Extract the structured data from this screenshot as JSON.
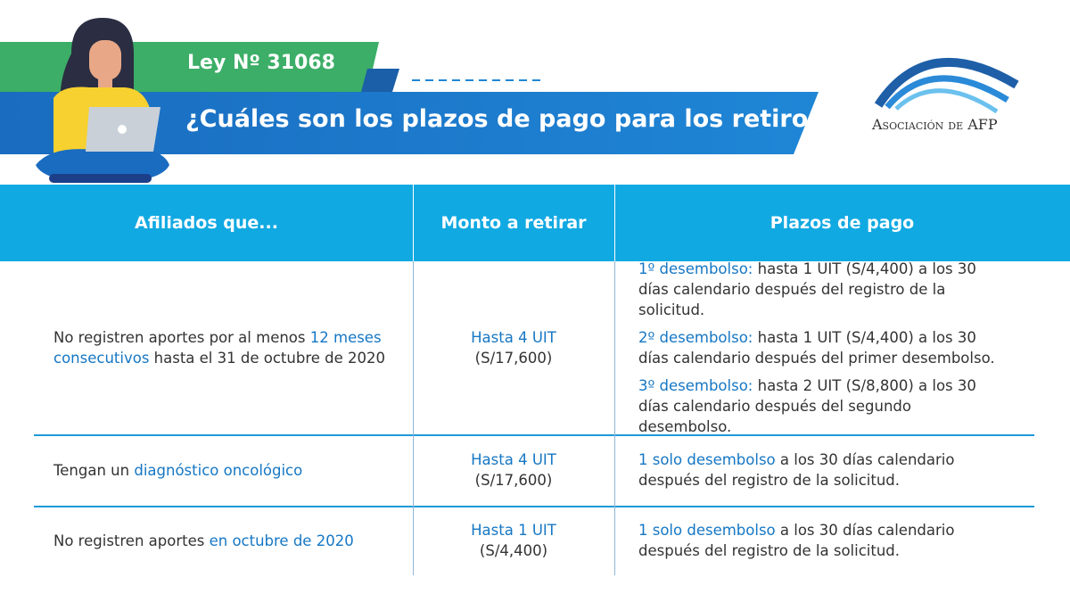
{
  "header": {
    "badge": "Ley Nº 31068",
    "title": "¿Cuáles son los plazos de pago para los retiros?",
    "logo": "Asociación de AFP"
  },
  "table": {
    "columns": [
      "Afiliados que...",
      "Monto a retirar",
      "Plazos de pago"
    ],
    "rows": [
      [
        [
          [
            {
              "text": "No registren aportes por al menos ",
              "accent": false
            },
            {
              "text": "12 meses consecutivos",
              "accent": true
            },
            {
              "text": " hasta el 31 de octubre de 2020",
              "accent": false
            }
          ]
        ],
        [
          [
            {
              "text": "Hasta 4 UIT",
              "accent": true
            }
          ],
          [
            {
              "text": "(S/17,600)",
              "accent": false
            }
          ]
        ],
        [
          [
            {
              "text": "1º desembolso:",
              "accent": true
            },
            {
              "text": " hasta 1 UIT (S/4,400) a los 30 días calendario después del registro de la solicitud.",
              "accent": false
            }
          ],
          [
            {
              "text": "2º desembolso:",
              "accent": true
            },
            {
              "text": " hasta 1 UIT (S/4,400) a los 30 días calendario después del primer desembolso.",
              "accent": false
            }
          ],
          [
            {
              "text": "3º desembolso:",
              "accent": true
            },
            {
              "text": " hasta 2 UIT (S/8,800) a los 30 días calendario después del segundo desembolso.",
              "accent": false
            }
          ]
        ]
      ],
      [
        [
          [
            {
              "text": "Tengan un ",
              "accent": false
            },
            {
              "text": "diagnóstico oncológico",
              "accent": true
            }
          ]
        ],
        [
          [
            {
              "text": "Hasta 4 UIT",
              "accent": true
            }
          ],
          [
            {
              "text": "(S/17,600)",
              "accent": false
            }
          ]
        ],
        [
          [
            {
              "text": "1 solo desembolso",
              "accent": true
            },
            {
              "text": " a los 30 días calendario después del registro de la solicitud.",
              "accent": false
            }
          ]
        ]
      ],
      [
        [
          [
            {
              "text": "No registren aportes ",
              "accent": false
            },
            {
              "text": "en octubre de 2020",
              "accent": true
            }
          ]
        ],
        [
          [
            {
              "text": "Hasta 1 UIT",
              "accent": true
            }
          ],
          [
            {
              "text": "(S/4,400)",
              "accent": false
            }
          ]
        ],
        [
          [
            {
              "text": "1 solo desembolso",
              "accent": true
            },
            {
              "text": " a los 30 días calendario después del registro de la solicitud.",
              "accent": false
            }
          ]
        ]
      ]
    ]
  }
}
